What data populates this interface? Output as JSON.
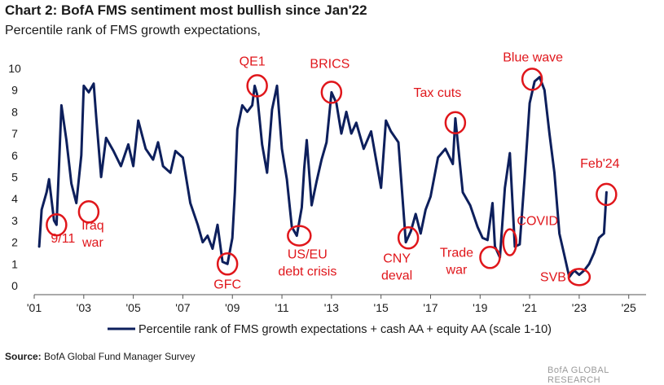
{
  "title": "Chart 2: BofA FMS sentiment most bullish since Jan'22",
  "subtitle": "Percentile rank of FMS growth expectations,",
  "source_label": "Source:",
  "source_text": "BofA Global Fund Manager Survey",
  "watermark": "BofA GLOBAL RESEARCH",
  "colors": {
    "line": "#0d1f5c",
    "annotation": "#e0161b",
    "axis": "#555555"
  },
  "chart_data": {
    "type": "line",
    "title": "Chart 2: BofA FMS sentiment most bullish since Jan'22",
    "subtitle": "Percentile rank of FMS growth expectations,",
    "xlabel": "",
    "ylabel": "",
    "xlim": [
      2001.0,
      2025.7
    ],
    "ylim": [
      0,
      10
    ],
    "x_ticks": [
      2001,
      2003,
      2005,
      2007,
      2009,
      2011,
      2013,
      2015,
      2017,
      2019,
      2021,
      2023,
      2025
    ],
    "x_tick_labels": [
      "'01",
      "'03",
      "'05",
      "'07",
      "'09",
      "'11",
      "'13",
      "'15",
      "'17",
      "'19",
      "'21",
      "'23",
      "'25"
    ],
    "y_ticks": [
      0,
      1,
      2,
      3,
      4,
      5,
      6,
      7,
      8,
      9,
      10
    ],
    "y_tick_labels": [
      "0",
      "1",
      "2",
      "3",
      "4",
      "5",
      "6",
      "7",
      "8",
      "9",
      "10"
    ],
    "grid": false,
    "legend_position": "bottom",
    "series": [
      {
        "name": "Percentile rank of FMS growth expectations + cash AA + equity AA (scale 1-10)",
        "x": [
          2001.2,
          2001.3,
          2001.5,
          2001.6,
          2001.8,
          2001.9,
          2002.0,
          2002.1,
          2002.3,
          2002.5,
          2002.7,
          2002.9,
          2003.0,
          2003.2,
          2003.4,
          2003.5,
          2003.7,
          2003.9,
          2004.2,
          2004.5,
          2004.8,
          2005.0,
          2005.2,
          2005.5,
          2005.8,
          2006.0,
          2006.2,
          2006.5,
          2006.7,
          2007.0,
          2007.3,
          2007.6,
          2007.8,
          2008.0,
          2008.2,
          2008.4,
          2008.6,
          2008.8,
          2009.0,
          2009.1,
          2009.2,
          2009.4,
          2009.6,
          2009.8,
          2009.9,
          2010.0,
          2010.2,
          2010.4,
          2010.6,
          2010.8,
          2011.0,
          2011.2,
          2011.4,
          2011.6,
          2011.8,
          2011.9,
          2012.0,
          2012.2,
          2012.4,
          2012.6,
          2012.8,
          2013.0,
          2013.2,
          2013.4,
          2013.6,
          2013.8,
          2014.0,
          2014.3,
          2014.6,
          2014.8,
          2015.0,
          2015.2,
          2015.4,
          2015.7,
          2016.0,
          2016.2,
          2016.4,
          2016.6,
          2016.8,
          2017.0,
          2017.3,
          2017.6,
          2017.9,
          2018.0,
          2018.3,
          2018.6,
          2018.9,
          2019.1,
          2019.3,
          2019.5,
          2019.6,
          2019.8,
          2020.0,
          2020.2,
          2020.4,
          2020.6,
          2020.8,
          2021.0,
          2021.2,
          2021.4,
          2021.6,
          2021.8,
          2022.0,
          2022.2,
          2022.4,
          2022.6,
          2022.8,
          2023.0,
          2023.2,
          2023.4,
          2023.6,
          2023.8,
          2024.0,
          2024.1
        ],
        "values": [
          1.8,
          3.5,
          4.3,
          4.9,
          3.0,
          2.8,
          5.5,
          8.3,
          6.7,
          4.7,
          3.8,
          6.0,
          9.2,
          8.9,
          9.3,
          7.8,
          5.0,
          6.8,
          6.2,
          5.5,
          6.5,
          5.5,
          7.6,
          6.3,
          5.8,
          6.6,
          5.5,
          5.2,
          6.2,
          5.9,
          3.8,
          2.8,
          2.0,
          2.3,
          1.7,
          2.8,
          1.1,
          1.0,
          2.2,
          4.3,
          7.2,
          8.3,
          8.0,
          8.3,
          9.2,
          8.8,
          6.5,
          5.2,
          8.1,
          9.2,
          6.3,
          4.9,
          2.7,
          2.3,
          3.6,
          5.4,
          6.7,
          3.7,
          4.8,
          5.8,
          6.6,
          8.9,
          8.4,
          7.0,
          8.0,
          7.0,
          7.5,
          6.3,
          7.1,
          5.8,
          4.5,
          7.6,
          7.1,
          6.6,
          2.0,
          2.5,
          3.3,
          2.4,
          3.5,
          4.1,
          5.9,
          6.3,
          5.6,
          7.7,
          4.3,
          3.7,
          2.7,
          2.2,
          2.1,
          3.8,
          1.8,
          1.3,
          4.5,
          6.1,
          1.8,
          1.9,
          5.0,
          8.4,
          9.4,
          9.6,
          9.0,
          7.0,
          5.2,
          2.4,
          1.4,
          0.4,
          0.7,
          0.5,
          0.7,
          1.0,
          1.5,
          2.2,
          2.4,
          4.3
        ]
      }
    ],
    "annotations": [
      {
        "label": "9/11",
        "x": 2001.9,
        "y": 2.8
      },
      {
        "label": "Iraq war",
        "x": 2003.2,
        "y": 3.4
      },
      {
        "label": "QE1",
        "x": 2010.0,
        "y": 9.2
      },
      {
        "label": "GFC",
        "x": 2008.8,
        "y": 1.0
      },
      {
        "label": "US/EU debt crisis",
        "x": 2011.7,
        "y": 2.3
      },
      {
        "label": "BRICS",
        "x": 2013.0,
        "y": 8.9
      },
      {
        "label": "CNY deval",
        "x": 2016.1,
        "y": 2.2
      },
      {
        "label": "Tax cuts",
        "x": 2018.0,
        "y": 7.5
      },
      {
        "label": "Trade war",
        "x": 2019.4,
        "y": 1.3
      },
      {
        "label": "COVID",
        "x": 2020.2,
        "y": 2.0
      },
      {
        "label": "Blue wave",
        "x": 2021.1,
        "y": 9.5
      },
      {
        "label": "SVB",
        "x": 2023.0,
        "y": 0.4
      },
      {
        "label": "Feb'24",
        "x": 2024.1,
        "y": 4.2
      }
    ]
  }
}
